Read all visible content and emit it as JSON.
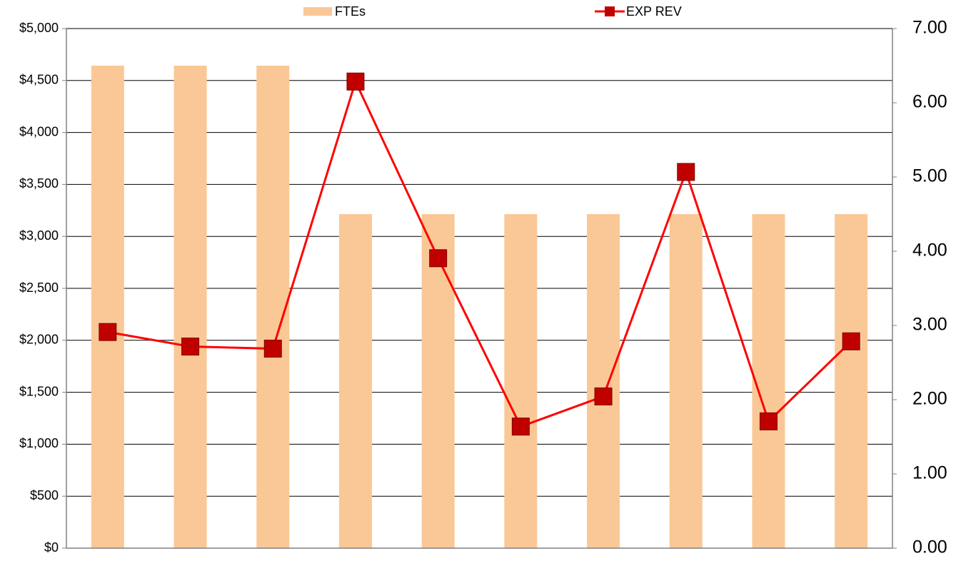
{
  "chart_data": {
    "type": "bar_line",
    "categories": [
      null,
      null,
      null,
      null,
      null,
      null,
      null,
      null,
      null,
      null
    ],
    "series": [
      {
        "name": "FTEs",
        "color": "#fac896",
        "type": "bar",
        "axis": "y2",
        "values": [
          6.5,
          6.5,
          6.5,
          4.5,
          4.5,
          4.5,
          4.5,
          4.5,
          4.5,
          4.5
        ]
      },
      {
        "name": "EXP REV",
        "color": "#ff0000",
        "marker_color": "#c00000",
        "type": "line",
        "values": [
          2080,
          1940,
          1920,
          4490,
          2790,
          1170,
          1460,
          3620,
          1220,
          1990
        ]
      }
    ],
    "ylim": [
      0,
      5000
    ],
    "yticks": [
      {
        "value": 0,
        "label": "$0"
      },
      {
        "value": 500,
        "label": "$500"
      },
      {
        "value": 1000,
        "label": "$1,000"
      },
      {
        "value": 1500,
        "label": "$1,500"
      },
      {
        "value": 2000,
        "label": "$2,000"
      },
      {
        "value": 2500,
        "label": "$2,500"
      },
      {
        "value": 3000,
        "label": "$3,000"
      },
      {
        "value": 3500,
        "label": "$3,500"
      },
      {
        "value": 4000,
        "label": "$4,000"
      },
      {
        "value": 4500,
        "label": "$4,500"
      },
      {
        "value": 5000,
        "label": "$5,000"
      }
    ],
    "y2lim": [
      0,
      7
    ],
    "y2ticks": [
      {
        "value": 0,
        "label": "0.00"
      },
      {
        "value": 1,
        "label": "1.00"
      },
      {
        "value": 2,
        "label": "2.00"
      },
      {
        "value": 3,
        "label": "3.00"
      },
      {
        "value": 4,
        "label": "4.00"
      },
      {
        "value": 5,
        "label": "5.00"
      },
      {
        "value": 6,
        "label": "6.00"
      },
      {
        "value": 7,
        "label": "7.00"
      }
    ],
    "grid": true,
    "legend": "top"
  }
}
